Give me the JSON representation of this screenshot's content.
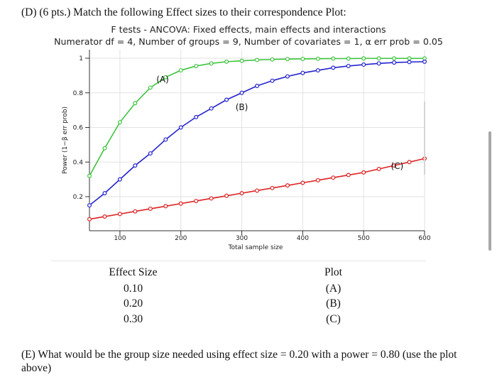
{
  "question_d": "(D) (6 pts.) Match the following Effect sizes to their correspondence Plot:",
  "chart_title_line1": "F tests - ANCOVA: Fixed effects, main effects and interactions",
  "chart_title_line2": "Numerator df = 4, Number of groups = 9, Number of covariates = 1, α err prob = 0.05",
  "question_e": "(E) What would be the group size needed using effect size = 0.20 with a power = 0.80 (use the plot above)",
  "match_table": {
    "effect_header": "Effect Size",
    "plot_header": "Plot",
    "effects": [
      "0.10",
      "0.20",
      "0.30"
    ],
    "plots": [
      "(A)",
      "(B)",
      "(C)"
    ]
  },
  "chart_data": {
    "type": "line",
    "title": "F tests - ANCOVA: Fixed effects, main effects and interactions",
    "subtitle": "Numerator df = 4, Number of groups = 9, Number of covariates = 1, α err prob = 0.05",
    "xlabel": "Total sample size",
    "ylabel": "Power (1−β err prob)",
    "xlim": [
      50,
      600
    ],
    "ylim": [
      0,
      1
    ],
    "x_ticks": [
      100,
      200,
      300,
      400,
      500,
      600
    ],
    "y_ticks": [
      "0.2",
      "0.4",
      "0.6",
      "0.8",
      "1"
    ],
    "grid": true,
    "series": [
      {
        "name": "(A)",
        "color": "#3ec43e",
        "x": [
          50,
          75,
          100,
          125,
          150,
          175,
          200,
          225,
          250,
          275,
          300,
          325,
          350,
          375,
          400,
          425,
          450,
          475,
          500,
          525,
          550,
          575,
          600
        ],
        "y": [
          0.32,
          0.48,
          0.63,
          0.74,
          0.83,
          0.89,
          0.93,
          0.955,
          0.97,
          0.98,
          0.985,
          0.99,
          0.993,
          0.995,
          0.996,
          0.997,
          0.998,
          0.998,
          0.999,
          0.999,
          0.999,
          0.999,
          0.999
        ]
      },
      {
        "name": "(B)",
        "color": "#2222cc",
        "x": [
          50,
          75,
          100,
          125,
          150,
          175,
          200,
          225,
          250,
          275,
          300,
          325,
          350,
          375,
          400,
          425,
          450,
          475,
          500,
          525,
          550,
          575,
          600
        ],
        "y": [
          0.15,
          0.22,
          0.3,
          0.38,
          0.45,
          0.53,
          0.6,
          0.66,
          0.71,
          0.76,
          0.8,
          0.84,
          0.87,
          0.895,
          0.915,
          0.93,
          0.945,
          0.955,
          0.963,
          0.97,
          0.975,
          0.978,
          0.98
        ]
      },
      {
        "name": "(C)",
        "color": "#dd2222",
        "x": [
          50,
          75,
          100,
          125,
          150,
          175,
          200,
          225,
          250,
          275,
          300,
          325,
          350,
          375,
          400,
          425,
          450,
          475,
          500,
          525,
          550,
          575,
          600
        ],
        "y": [
          0.07,
          0.085,
          0.1,
          0.115,
          0.13,
          0.145,
          0.16,
          0.175,
          0.19,
          0.205,
          0.22,
          0.235,
          0.25,
          0.265,
          0.28,
          0.295,
          0.31,
          0.325,
          0.34,
          0.36,
          0.38,
          0.4,
          0.42
        ]
      }
    ]
  }
}
